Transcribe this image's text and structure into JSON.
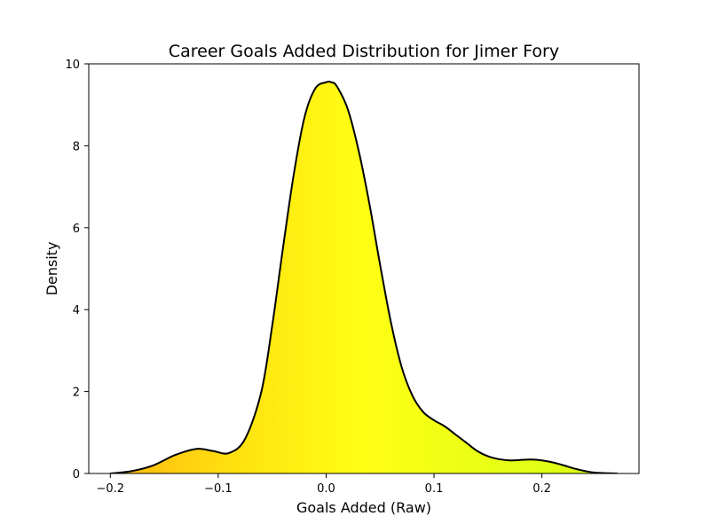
{
  "chart_data": {
    "type": "area",
    "title": "Career Goals Added Distribution for Jimer Fory",
    "xlabel": "Goals Added (Raw)",
    "ylabel": "Density",
    "xlim": [
      -0.22,
      0.29
    ],
    "ylim": [
      0,
      10
    ],
    "xticks": [
      -0.2,
      -0.1,
      0.0,
      0.1,
      0.2
    ],
    "xtick_labels": [
      "−0.2",
      "−0.1",
      "0.0",
      "0.1",
      "0.2"
    ],
    "yticks": [
      0,
      2,
      4,
      6,
      8,
      10
    ],
    "ytick_labels": [
      "0",
      "2",
      "4",
      "6",
      "8",
      "10"
    ],
    "grid": false,
    "series": [
      {
        "x": [
          -0.2,
          -0.18,
          -0.16,
          -0.14,
          -0.12,
          -0.105,
          -0.09,
          -0.075,
          -0.06,
          -0.05,
          -0.04,
          -0.03,
          -0.02,
          -0.01,
          0.0,
          0.005,
          0.01,
          0.02,
          0.03,
          0.04,
          0.05,
          0.06,
          0.07,
          0.08,
          0.09,
          0.1,
          0.11,
          0.12,
          0.13,
          0.14,
          0.15,
          0.16,
          0.17,
          0.18,
          0.19,
          0.2,
          0.21,
          0.22,
          0.23,
          0.24,
          0.25,
          0.27
        ],
        "y": [
          0.0,
          0.06,
          0.2,
          0.45,
          0.6,
          0.55,
          0.5,
          0.85,
          2.0,
          3.6,
          5.5,
          7.3,
          8.7,
          9.4,
          9.55,
          9.55,
          9.45,
          8.9,
          7.9,
          6.6,
          5.1,
          3.7,
          2.6,
          1.9,
          1.5,
          1.3,
          1.15,
          0.95,
          0.75,
          0.55,
          0.42,
          0.35,
          0.32,
          0.33,
          0.34,
          0.32,
          0.27,
          0.2,
          0.12,
          0.06,
          0.02,
          0.0
        ],
        "line_color": "#000000",
        "fill_gradient": [
          "#FFB70F",
          "#FFE20F",
          "#FFFF14",
          "#E8FF14",
          "#D5FF14"
        ]
      }
    ]
  }
}
